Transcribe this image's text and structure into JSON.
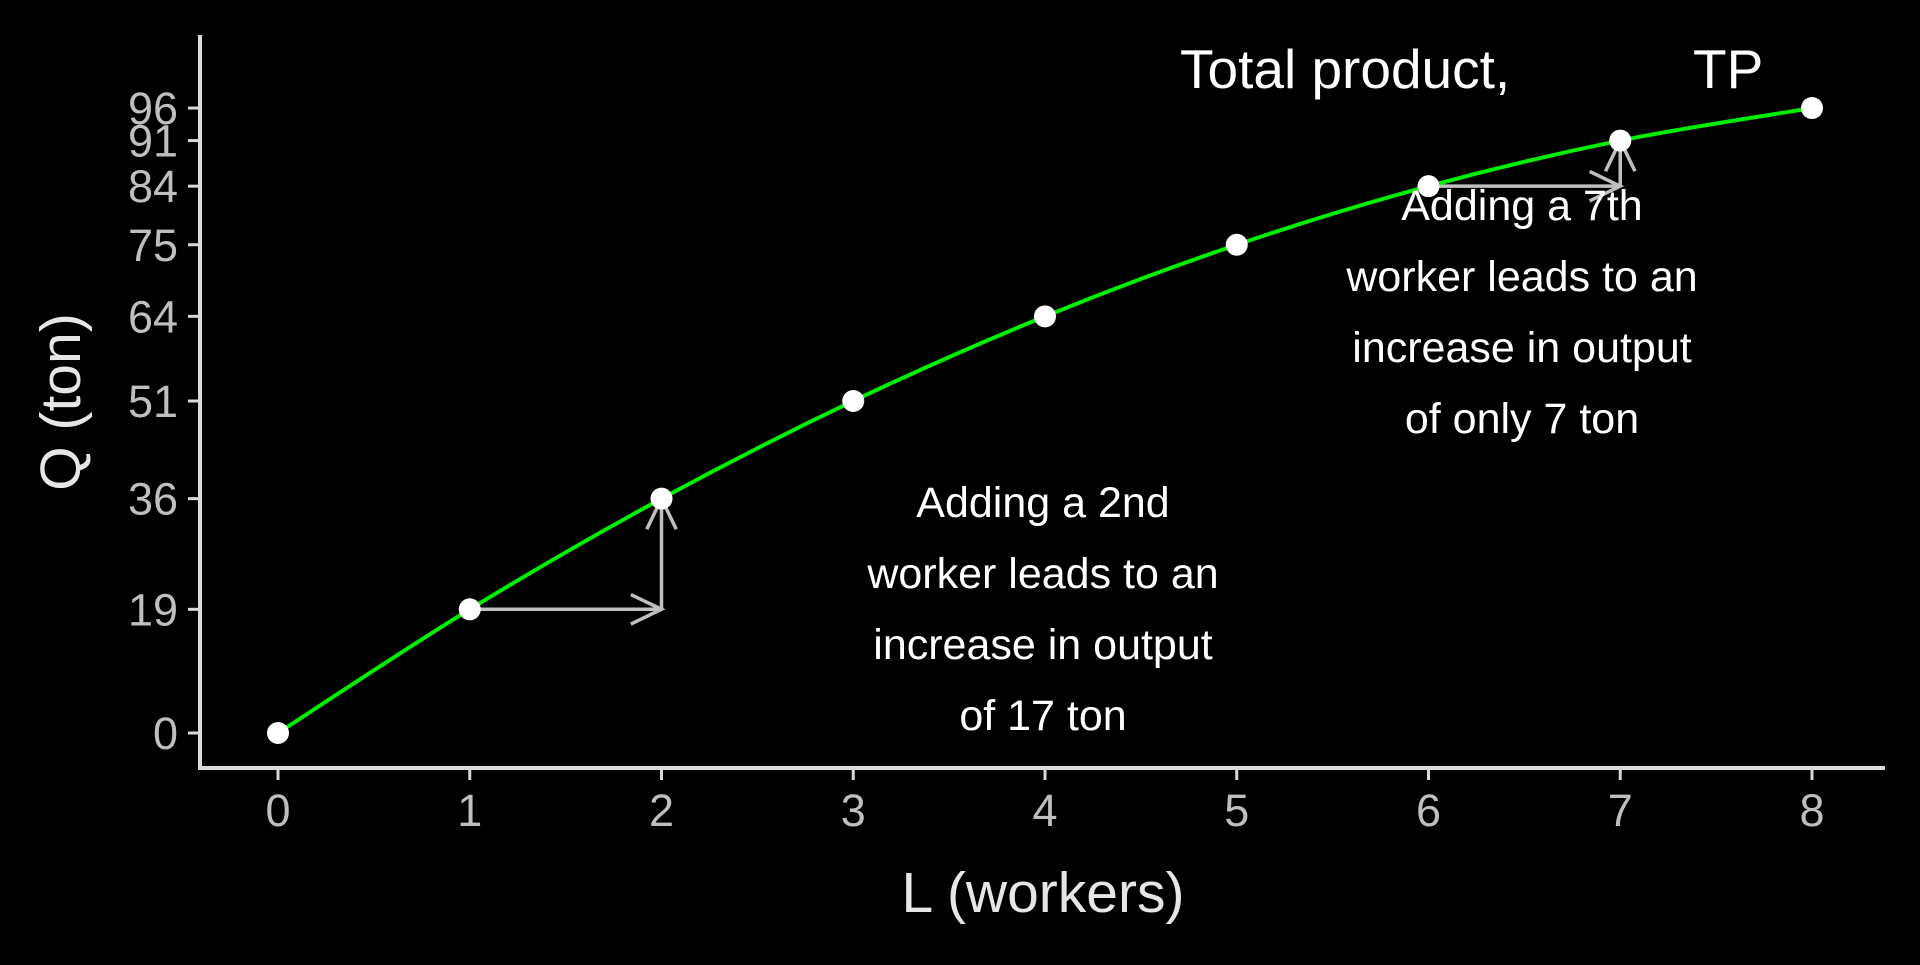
{
  "chart_data": {
    "type": "line",
    "title_parts": [
      "Total product,",
      "TP"
    ],
    "xlabel": "L (workers)",
    "ylabel": "Q (ton)",
    "x": [
      0,
      1,
      2,
      3,
      4,
      5,
      6,
      7,
      8
    ],
    "series": [
      {
        "values": [
          0,
          19,
          36,
          51,
          64,
          75,
          84,
          91,
          96
        ]
      }
    ],
    "x_ticks": [
      "0",
      "1",
      "2",
      "3",
      "4",
      "5",
      "6",
      "7",
      "8"
    ],
    "y_ticks": [
      "0",
      "19",
      "36",
      "51",
      "64",
      "75",
      "84",
      "91",
      "96"
    ],
    "xlim": [
      -0.4,
      8.4
    ],
    "ylim": [
      -5,
      107
    ],
    "grid": false,
    "legend": "none",
    "annotations": [
      {
        "lines": [
          "Adding a 2nd",
          "worker leads to an",
          "increase in output",
          "of 17 ton"
        ],
        "x": 4,
        "y": 36
      },
      {
        "lines": [
          "Adding a 7th",
          "worker leads to an",
          "increase in output",
          "of only 7 ton"
        ],
        "x": 6.5,
        "y": 84
      }
    ],
    "arrows": [
      {
        "from": [
          1,
          19
        ],
        "to": [
          2,
          19
        ]
      },
      {
        "from": [
          2,
          19
        ],
        "to": [
          2,
          36
        ]
      },
      {
        "from": [
          6,
          84
        ],
        "to": [
          7,
          84
        ]
      },
      {
        "from": [
          7,
          84
        ],
        "to": [
          7,
          91
        ]
      }
    ],
    "colors": {
      "background": "#000000",
      "line": "#00ee00",
      "points": "#ffffff",
      "axis": "#d9d9d9",
      "tick_labels": "#bfbfbf",
      "axis_titles": "#e6e6e6",
      "text": "#ffffff",
      "arrows": "#bfbfbf"
    }
  }
}
